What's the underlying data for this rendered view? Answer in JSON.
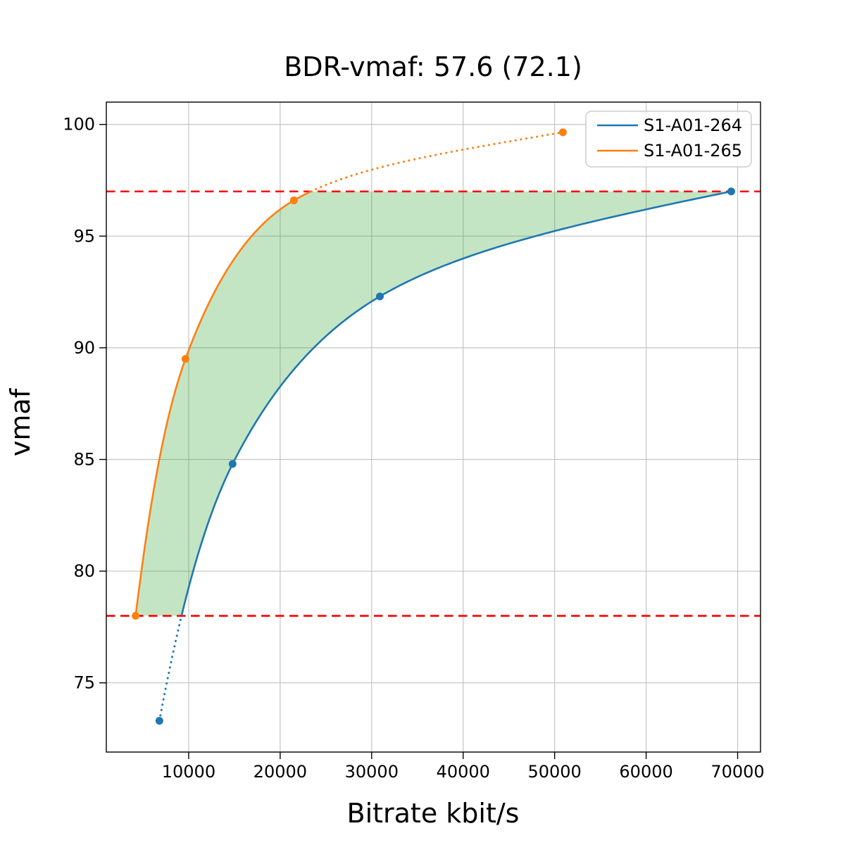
{
  "chart_data": {
    "type": "line",
    "title": "BDR-vmaf: 57.6 (72.1)",
    "xlabel": "Bitrate kbit/s",
    "ylabel": "vmaf",
    "xlim": [
      1000,
      72500
    ],
    "ylim": [
      71.9,
      101.0
    ],
    "xticks": [
      10000,
      20000,
      30000,
      40000,
      50000,
      60000,
      70000
    ],
    "yticks": [
      75,
      80,
      85,
      90,
      95,
      100
    ],
    "grid": true,
    "grid_color": "#c4c4c4",
    "legend_position": "upper right",
    "series": [
      {
        "name": "S1-A01-264",
        "color": "#1f77b4",
        "marker": "circle",
        "points": [
          [
            6800,
            73.3
          ],
          [
            14800,
            84.8
          ],
          [
            30900,
            92.3
          ],
          [
            69300,
            97.0
          ]
        ]
      },
      {
        "name": "S1-A01-265",
        "color": "#ff7f0e",
        "marker": "circle",
        "points": [
          [
            4200,
            78.0
          ],
          [
            9650,
            89.5
          ],
          [
            21500,
            96.6
          ],
          [
            50900,
            99.65
          ]
        ]
      }
    ],
    "overlap_lines": {
      "y_values": [
        97.0,
        78.0
      ],
      "color": "#ff0000",
      "style": "dashed"
    },
    "fill_between": {
      "color": "#2ca02c",
      "opacity": 0.28,
      "y_range": [
        78.0,
        97.0
      ]
    },
    "out_of_range_style": "dotted",
    "interpolation": "monotone-cubic-log-x"
  }
}
